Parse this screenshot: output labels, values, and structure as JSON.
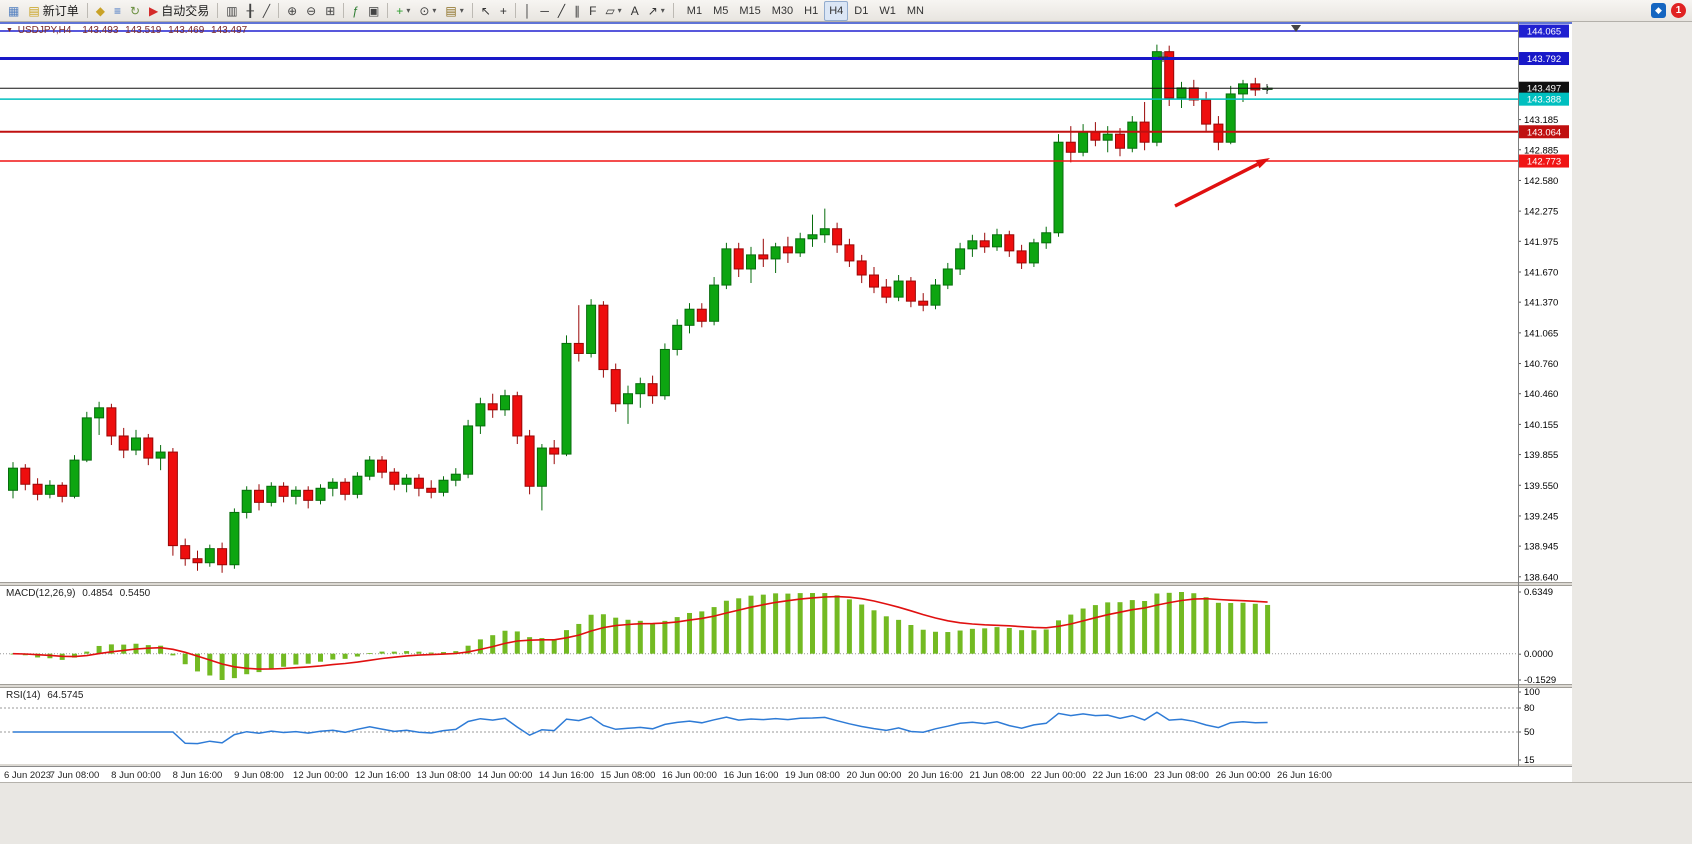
{
  "toolbar": {
    "items": [
      {
        "name": "charts",
        "glyph": "▦",
        "color": "#4f7dbf"
      },
      {
        "name": "new-order",
        "glyph": "▤",
        "color": "#c9a11c",
        "label": "新订单"
      },
      {
        "type": "sep"
      },
      {
        "name": "profiles",
        "glyph": "◆",
        "color": "#c9a227"
      },
      {
        "name": "market-watch",
        "glyph": "≡",
        "color": "#3a6ebf"
      },
      {
        "name": "refresh",
        "glyph": "↻",
        "color": "#6a8f3f"
      },
      {
        "name": "auto-trading",
        "glyph": "▶",
        "color": "#d42a2a",
        "label": "自动交易"
      },
      {
        "type": "sep"
      },
      {
        "name": "bar-chart",
        "glyph": "▥",
        "color": "#444444"
      },
      {
        "name": "candlestick-chart",
        "glyph": "╂",
        "color": "#444444"
      },
      {
        "name": "line-chart",
        "glyph": "╱",
        "color": "#444444"
      },
      {
        "type": "sep"
      },
      {
        "name": "zoom-in",
        "glyph": "⊕",
        "color": "#444444"
      },
      {
        "name": "zoom-out",
        "glyph": "⊖",
        "color": "#444444"
      },
      {
        "name": "tile-windows",
        "glyph": "⊞",
        "color": "#444444"
      },
      {
        "type": "sep"
      },
      {
        "name": "indicators",
        "glyph": "ƒ",
        "color": "#2e7d32"
      },
      {
        "name": "indicator-windows",
        "glyph": "▣",
        "color": "#444444"
      },
      {
        "type": "sep"
      },
      {
        "name": "add-indicator",
        "glyph": "+",
        "color": "#2e9e2e",
        "caret": true
      },
      {
        "name": "periods",
        "glyph": "⊙",
        "color": "#444444",
        "caret": true
      },
      {
        "name": "templates",
        "glyph": "▤",
        "color": "#8a6d1f",
        "caret": true
      },
      {
        "type": "sep"
      },
      {
        "name": "cursor",
        "glyph": "↖",
        "color": "#333333"
      },
      {
        "name": "crosshair",
        "glyph": "+",
        "color": "#333333"
      },
      {
        "type": "sep"
      },
      {
        "name": "vertical-line",
        "glyph": "│",
        "color": "#333333"
      },
      {
        "name": "horizontal-line",
        "glyph": "─",
        "color": "#333333"
      },
      {
        "name": "trendline",
        "glyph": "╱",
        "color": "#333333"
      },
      {
        "name": "channel",
        "glyph": "∥",
        "color": "#333333"
      },
      {
        "name": "fibonacci",
        "glyph": "F",
        "color": "#333333"
      },
      {
        "name": "shapes",
        "glyph": "▱",
        "color": "#333333",
        "caret": true
      },
      {
        "name": "text",
        "glyph": "A",
        "color": "#333333"
      },
      {
        "name": "arrows",
        "glyph": "↗",
        "color": "#333333",
        "caret": true
      },
      {
        "type": "sep"
      }
    ],
    "timeframes": {
      "items": [
        "M1",
        "M5",
        "M15",
        "M30",
        "H1",
        "H4",
        "D1",
        "W1",
        "MN"
      ],
      "active": "H4"
    },
    "right": {
      "community_glyph": "◆",
      "notification_count": "1"
    }
  },
  "chart": {
    "header": {
      "marker": "▼",
      "symbol": "USDJPY,H4",
      "open": "143.493",
      "high": "143.519",
      "low": "143.469",
      "close": "143.497"
    },
    "colors": {
      "bull": "#0da511",
      "bull_border": "#076d0d",
      "bear": "#ee0e0e",
      "bear_border": "#9a0707",
      "macd_hist": "#73ba22",
      "macd_signal": "#e01010",
      "rsi_line": "#2e7bd6",
      "arrow": "#e01010",
      "top_border": "#2b46c8"
    },
    "price_axis": {
      "ticks": [
        "143.185",
        "142.885",
        "142.580",
        "142.275",
        "141.975",
        "141.670",
        "141.370",
        "141.065",
        "140.760",
        "140.460",
        "140.155",
        "139.855",
        "139.550",
        "139.245",
        "138.945",
        "138.640"
      ]
    },
    "lines": [
      {
        "label": "144.065",
        "price": 144.065,
        "color": "#2020d0",
        "width": 1.5
      },
      {
        "label": "143.792",
        "price": 143.792,
        "color": "#1818c8",
        "width": 3
      },
      {
        "label": "143.497",
        "price": 143.497,
        "color": "#111111",
        "width": 1,
        "role": "current-price"
      },
      {
        "label": "143.388",
        "price": 143.388,
        "color": "#00bfbf",
        "width": 1.5
      },
      {
        "label": "143.064",
        "price": 143.064,
        "color": "#c01010",
        "width": 2
      },
      {
        "label": "142.773",
        "price": 142.773,
        "color": "#f01414",
        "width": 1.5
      }
    ],
    "macd": {
      "name": "MACD(12,26,9)",
      "value_main": "0.4854",
      "value_signal": "0.5450",
      "axis_labels": [
        "0.6349",
        "0.0000",
        "-0.1529"
      ]
    },
    "rsi": {
      "name": "RSI(14)",
      "value": "64.5745",
      "axis_labels": [
        "100",
        "80",
        "50",
        "15"
      ],
      "levels": [
        80,
        50
      ]
    },
    "time_axis": {
      "labels": [
        "6 Jun 2023",
        "7 Jun 08:00",
        "8 Jun 00:00",
        "8 Jun 16:00",
        "9 Jun 08:00",
        "12 Jun 00:00",
        "12 Jun 16:00",
        "13 Jun 08:00",
        "14 Jun 00:00",
        "14 Jun 16:00",
        "15 Jun 08:00",
        "16 Jun 00:00",
        "16 Jun 16:00",
        "19 Jun 08:00",
        "20 Jun 00:00",
        "20 Jun 16:00",
        "21 Jun 08:00",
        "22 Jun 00:00",
        "22 Jun 16:00",
        "23 Jun 08:00",
        "26 Jun 00:00",
        "26 Jun 16:00"
      ]
    }
  },
  "chart_data": {
    "type": "candlestick",
    "symbol": "USDJPY",
    "timeframe": "H4",
    "ohlc_current": {
      "open": 143.493,
      "high": 143.519,
      "low": 143.469,
      "close": 143.497
    },
    "price_range": [
      138.64,
      144.065
    ],
    "horizontal_levels": [
      144.065,
      143.792,
      143.497,
      143.388,
      143.064,
      142.773
    ],
    "candles": [
      [
        139.5,
        139.78,
        139.42,
        139.72
      ],
      [
        139.72,
        139.76,
        139.5,
        139.56
      ],
      [
        139.56,
        139.62,
        139.4,
        139.46
      ],
      [
        139.46,
        139.6,
        139.42,
        139.55
      ],
      [
        139.55,
        139.58,
        139.38,
        139.44
      ],
      [
        139.44,
        139.85,
        139.42,
        139.8
      ],
      [
        139.8,
        140.28,
        139.78,
        140.22
      ],
      [
        140.22,
        140.38,
        140.05,
        140.32
      ],
      [
        140.32,
        140.36,
        139.95,
        140.04
      ],
      [
        140.04,
        140.12,
        139.82,
        139.9
      ],
      [
        139.9,
        140.1,
        139.85,
        140.02
      ],
      [
        140.02,
        140.06,
        139.75,
        139.82
      ],
      [
        139.82,
        139.95,
        139.7,
        139.88
      ],
      [
        139.88,
        139.92,
        138.85,
        138.95
      ],
      [
        138.95,
        139.02,
        138.75,
        138.82
      ],
      [
        138.82,
        138.9,
        138.7,
        138.78
      ],
      [
        138.78,
        138.96,
        138.74,
        138.92
      ],
      [
        138.92,
        138.98,
        138.68,
        138.76
      ],
      [
        138.76,
        139.32,
        138.72,
        139.28
      ],
      [
        139.28,
        139.54,
        139.22,
        139.5
      ],
      [
        139.5,
        139.56,
        139.3,
        139.38
      ],
      [
        139.38,
        139.58,
        139.34,
        139.54
      ],
      [
        139.54,
        139.58,
        139.38,
        139.44
      ],
      [
        139.44,
        139.54,
        139.36,
        139.5
      ],
      [
        139.5,
        139.54,
        139.32,
        139.4
      ],
      [
        139.4,
        139.56,
        139.36,
        139.52
      ],
      [
        139.52,
        139.62,
        139.44,
        139.58
      ],
      [
        139.58,
        139.62,
        139.4,
        139.46
      ],
      [
        139.46,
        139.68,
        139.42,
        139.64
      ],
      [
        139.64,
        139.84,
        139.6,
        139.8
      ],
      [
        139.8,
        139.84,
        139.62,
        139.68
      ],
      [
        139.68,
        139.72,
        139.5,
        139.56
      ],
      [
        139.56,
        139.66,
        139.48,
        139.62
      ],
      [
        139.62,
        139.66,
        139.44,
        139.52
      ],
      [
        139.52,
        139.6,
        139.42,
        139.48
      ],
      [
        139.48,
        139.64,
        139.44,
        139.6
      ],
      [
        139.6,
        139.72,
        139.54,
        139.66
      ],
      [
        139.66,
        140.2,
        139.62,
        140.14
      ],
      [
        140.14,
        140.42,
        140.06,
        140.36
      ],
      [
        140.36,
        140.46,
        140.22,
        140.3
      ],
      [
        140.3,
        140.5,
        140.24,
        140.44
      ],
      [
        140.44,
        140.48,
        139.96,
        140.04
      ],
      [
        140.04,
        140.1,
        139.46,
        139.54
      ],
      [
        139.54,
        139.96,
        139.3,
        139.92
      ],
      [
        139.92,
        140.0,
        139.76,
        139.86
      ],
      [
        139.86,
        141.04,
        139.84,
        140.96
      ],
      [
        140.96,
        141.34,
        140.78,
        140.86
      ],
      [
        140.86,
        141.4,
        140.82,
        141.34
      ],
      [
        141.34,
        141.38,
        140.62,
        140.7
      ],
      [
        140.7,
        140.76,
        140.28,
        140.36
      ],
      [
        140.36,
        140.54,
        140.16,
        140.46
      ],
      [
        140.46,
        140.62,
        140.32,
        140.56
      ],
      [
        140.56,
        140.64,
        140.36,
        140.44
      ],
      [
        140.44,
        140.96,
        140.4,
        140.9
      ],
      [
        140.9,
        141.2,
        140.84,
        141.14
      ],
      [
        141.14,
        141.36,
        141.06,
        141.3
      ],
      [
        141.3,
        141.36,
        141.12,
        141.18
      ],
      [
        141.18,
        141.62,
        141.14,
        141.54
      ],
      [
        141.54,
        141.96,
        141.5,
        141.9
      ],
      [
        141.9,
        141.96,
        141.62,
        141.7
      ],
      [
        141.7,
        141.92,
        141.56,
        141.84
      ],
      [
        141.84,
        142.0,
        141.72,
        141.8
      ],
      [
        141.8,
        141.96,
        141.66,
        141.92
      ],
      [
        141.92,
        142.02,
        141.76,
        141.86
      ],
      [
        141.86,
        142.06,
        141.82,
        142.0
      ],
      [
        142.0,
        142.24,
        141.92,
        142.04
      ],
      [
        142.04,
        142.3,
        141.96,
        142.1
      ],
      [
        142.1,
        142.16,
        141.86,
        141.94
      ],
      [
        141.94,
        142.0,
        141.72,
        141.78
      ],
      [
        141.78,
        141.84,
        141.56,
        141.64
      ],
      [
        141.64,
        141.72,
        141.46,
        141.52
      ],
      [
        141.52,
        141.6,
        141.36,
        141.42
      ],
      [
        141.42,
        141.64,
        141.38,
        141.58
      ],
      [
        141.58,
        141.62,
        141.32,
        141.38
      ],
      [
        141.38,
        141.46,
        141.28,
        141.34
      ],
      [
        141.34,
        141.6,
        141.3,
        141.54
      ],
      [
        141.54,
        141.76,
        141.5,
        141.7
      ],
      [
        141.7,
        141.96,
        141.64,
        141.9
      ],
      [
        141.9,
        142.04,
        141.82,
        141.98
      ],
      [
        141.98,
        142.06,
        141.86,
        141.92
      ],
      [
        141.92,
        142.1,
        141.88,
        142.04
      ],
      [
        142.04,
        142.08,
        141.82,
        141.88
      ],
      [
        141.88,
        141.94,
        141.7,
        141.76
      ],
      [
        141.76,
        142.0,
        141.72,
        141.96
      ],
      [
        141.96,
        142.12,
        141.9,
        142.06
      ],
      [
        142.06,
        143.04,
        142.02,
        142.96
      ],
      [
        142.96,
        143.12,
        142.76,
        142.86
      ],
      [
        142.86,
        143.14,
        142.82,
        143.06
      ],
      [
        143.06,
        143.16,
        142.92,
        142.98
      ],
      [
        142.98,
        143.12,
        142.86,
        143.04
      ],
      [
        143.04,
        143.1,
        142.82,
        142.9
      ],
      [
        142.9,
        143.22,
        142.86,
        143.16
      ],
      [
        143.16,
        143.36,
        142.88,
        142.96
      ],
      [
        142.96,
        143.93,
        142.92,
        143.86
      ],
      [
        143.86,
        143.92,
        143.32,
        143.4
      ],
      [
        143.4,
        143.56,
        143.3,
        143.5
      ],
      [
        143.5,
        143.58,
        143.32,
        143.38
      ],
      [
        143.38,
        143.46,
        143.06,
        143.14
      ],
      [
        143.14,
        143.22,
        142.88,
        142.96
      ],
      [
        142.96,
        143.52,
        142.94,
        143.44
      ],
      [
        143.44,
        143.58,
        143.36,
        143.54
      ],
      [
        143.54,
        143.6,
        143.42,
        143.48
      ],
      [
        143.493,
        143.519,
        143.469,
        143.497
      ]
    ],
    "indicators": [
      {
        "type": "MACD",
        "params": [
          12,
          26,
          9
        ],
        "current_main": 0.4854,
        "current_signal": 0.545,
        "axis": [
          0.6349,
          0.0,
          -0.1529
        ]
      },
      {
        "type": "RSI",
        "params": [
          14
        ],
        "current": 64.5745,
        "levels": [
          80,
          50
        ]
      }
    ]
  }
}
